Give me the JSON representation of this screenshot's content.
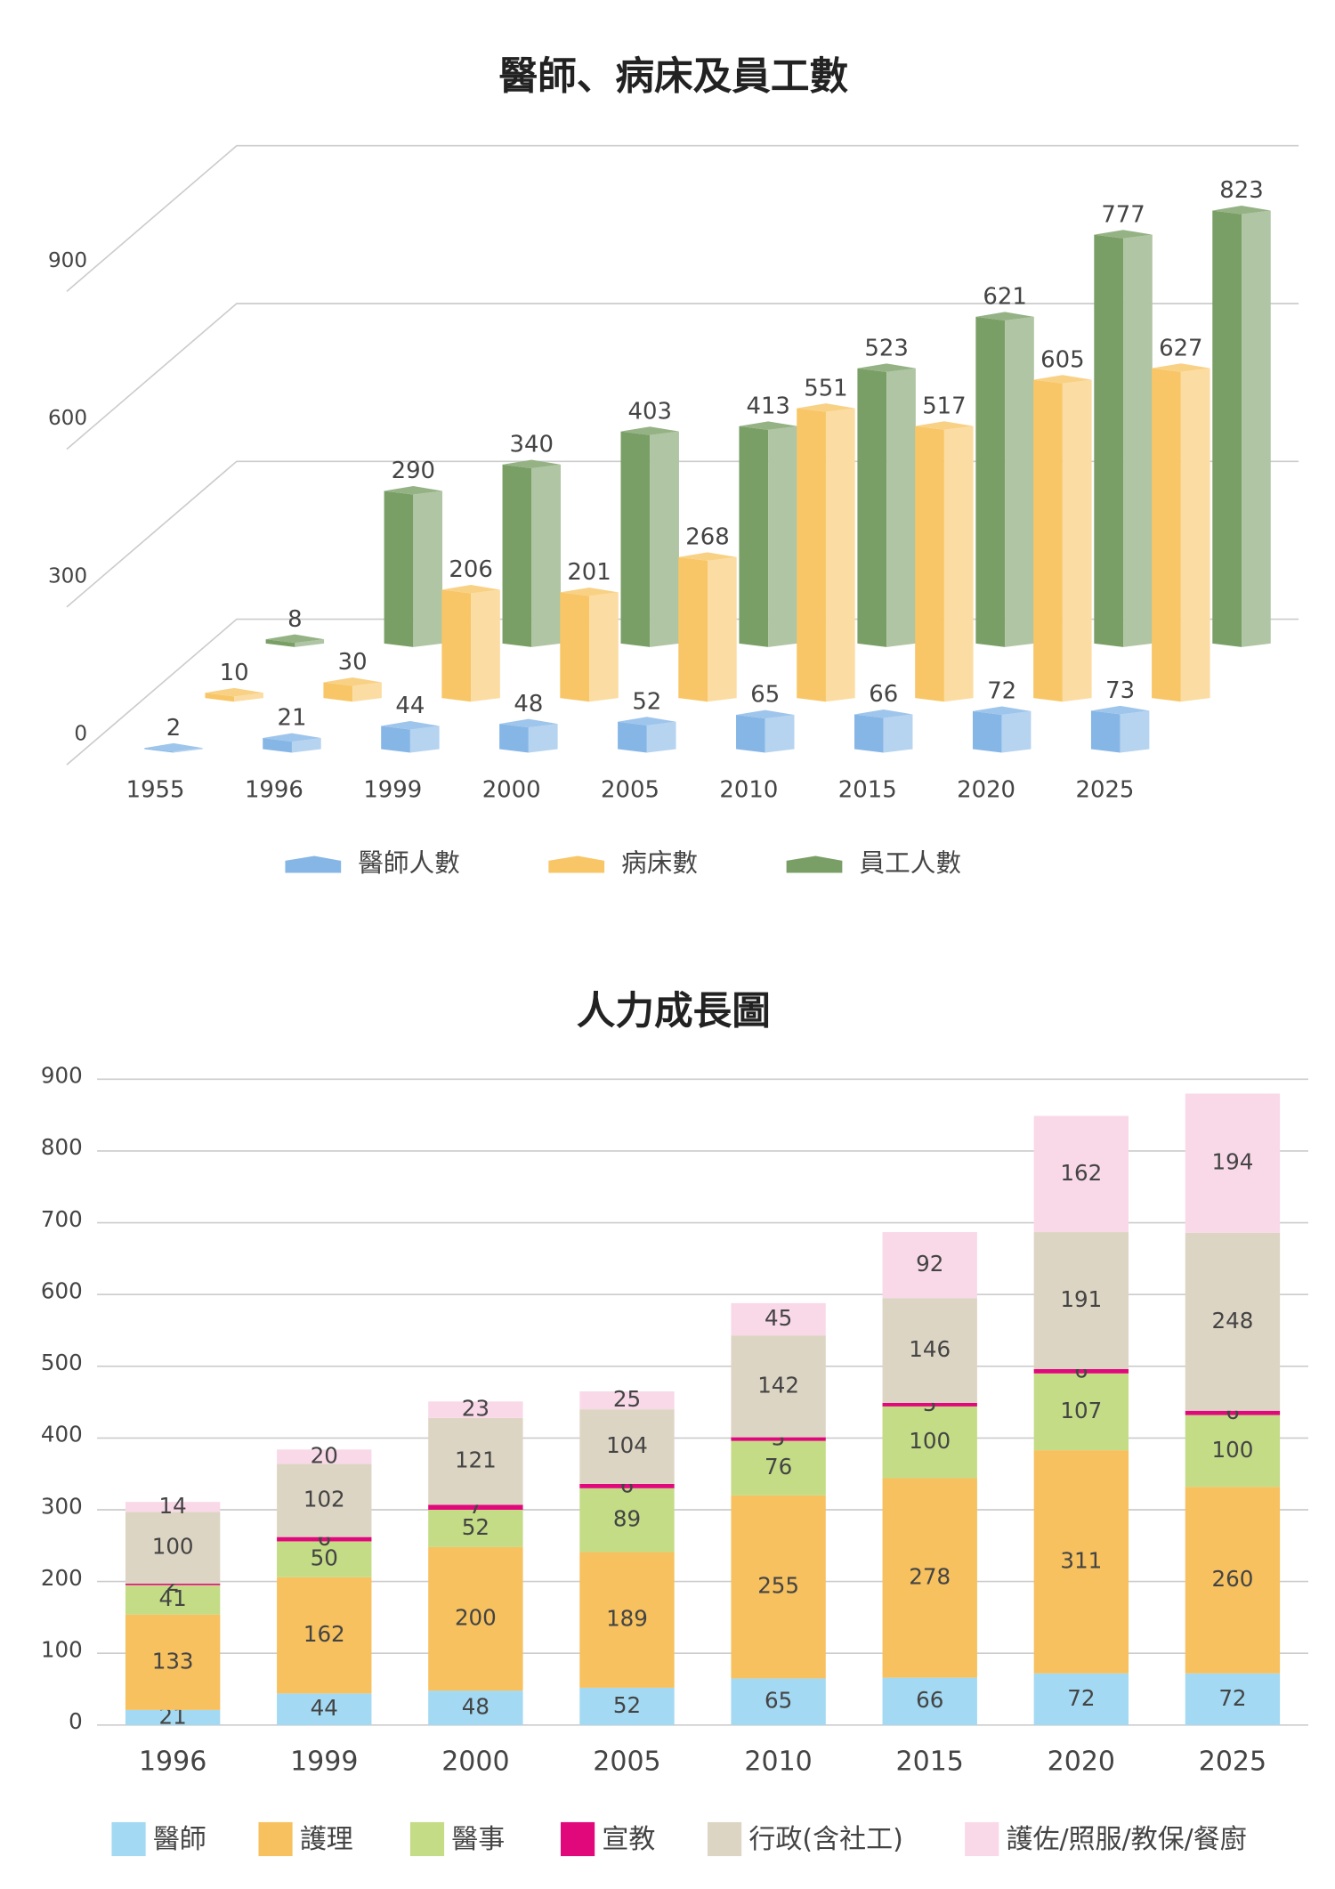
{
  "chart_data": [
    {
      "type": "bar3d",
      "title": "醫師、病床及員工數",
      "categories": [
        "1955",
        "1996",
        "1999",
        "2000",
        "2005",
        "2010",
        "2015",
        "2020",
        "2025"
      ],
      "series": [
        {
          "name": "醫師人數",
          "color": "#86b6e6",
          "values": [
            2,
            21,
            44,
            48,
            52,
            65,
            66,
            72,
            73
          ]
        },
        {
          "name": "病床數",
          "color": "#f8c666",
          "values": [
            10,
            30,
            206,
            201,
            268,
            551,
            517,
            605,
            627
          ]
        },
        {
          "name": "員工人數",
          "color": "#7a9f66",
          "values": [
            8,
            290,
            340,
            403,
            413,
            523,
            621,
            777,
            823
          ]
        }
      ],
      "ylim": [
        0,
        900
      ],
      "yticks": [
        0,
        300,
        600,
        900
      ],
      "grid": true
    },
    {
      "type": "stacked_bar",
      "title": "人力成長圖",
      "categories": [
        "1996",
        "1999",
        "2000",
        "2005",
        "2010",
        "2015",
        "2020",
        "2025"
      ],
      "series": [
        {
          "name": "醫師",
          "color": "#a3d9f2",
          "values": [
            21,
            44,
            48,
            52,
            65,
            66,
            72,
            72
          ]
        },
        {
          "name": "護理",
          "color": "#f6c15e",
          "values": [
            133,
            162,
            200,
            189,
            255,
            278,
            311,
            260
          ]
        },
        {
          "name": "醫事",
          "color": "#c4dc86",
          "values": [
            41,
            50,
            52,
            89,
            76,
            100,
            107,
            100
          ]
        },
        {
          "name": "宣教",
          "color": "#e0087a",
          "values": [
            2,
            6,
            7,
            6,
            5,
            5,
            6,
            6
          ]
        },
        {
          "name": "行政(含社工)",
          "color": "#ddd5c4",
          "values": [
            100,
            102,
            121,
            104,
            142,
            146,
            191,
            248
          ]
        },
        {
          "name": "護佐/照服/教保/餐廚",
          "color": "#f9d9e8",
          "values": [
            14,
            20,
            23,
            25,
            45,
            92,
            162,
            194
          ]
        }
      ],
      "ylim": [
        0,
        900
      ],
      "yticks": [
        0,
        100,
        200,
        300,
        400,
        500,
        600,
        700,
        800,
        900
      ],
      "grid": true
    }
  ]
}
